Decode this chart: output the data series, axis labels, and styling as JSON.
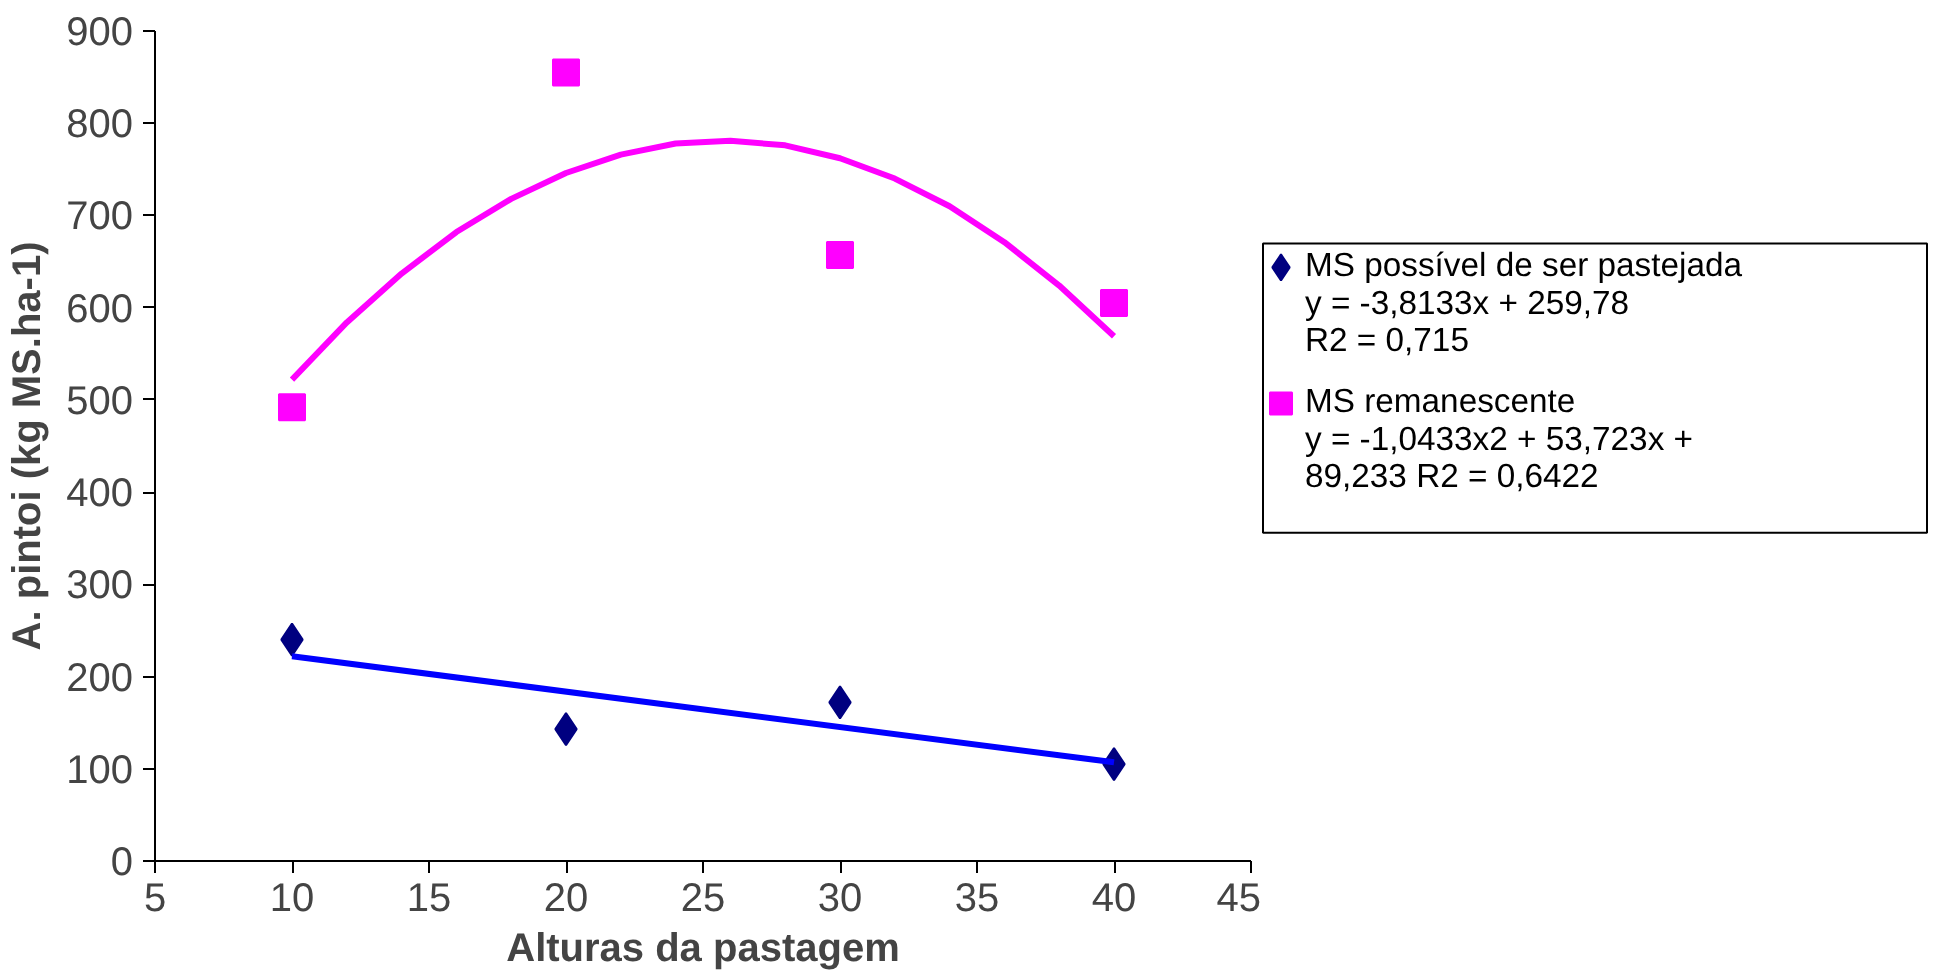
{
  "chart_data": {
    "type": "scatter",
    "xlabel": "Alturas da pastagem",
    "ylabel": "A. pintoi (kg MS.ha-1)",
    "xlim": [
      5,
      45
    ],
    "xticks": [
      5,
      10,
      15,
      20,
      25,
      30,
      35,
      40,
      45
    ],
    "ylim": [
      0,
      900
    ],
    "yticks": [
      0,
      100,
      200,
      300,
      400,
      500,
      600,
      700,
      800,
      900
    ],
    "grid": false,
    "legend": "right",
    "annotations": [
      "y = -3,8133x + 259,78\nR2 = 0,715",
      "y = -1,0433x2 + 53,723x +\n89,233 R2 = 0,6422"
    ],
    "series": [
      {
        "name": "MS possível de ser pastejada",
        "marker": "diamond",
        "color": "#000080",
        "x": [
          10,
          20,
          30,
          40
        ],
        "values": [
          240,
          143,
          172,
          105
        ]
      },
      {
        "name": "MS remanescente",
        "marker": "square",
        "color": "#ff00ff",
        "x": [
          10,
          20,
          30,
          40
        ],
        "values": [
          492,
          855,
          657,
          605
        ]
      },
      {
        "type": "line",
        "marker": "none",
        "color": "#0000ff",
        "x": [
          10,
          40
        ],
        "values": [
          222,
          107
        ]
      },
      {
        "type": "line",
        "marker": "none",
        "color": "#ff00ff",
        "x": [
          10,
          12,
          14,
          16,
          18,
          20,
          22,
          24,
          26,
          28,
          30,
          32,
          34,
          36,
          38,
          40
        ],
        "values": [
          522,
          584,
          637,
          682,
          718,
          746,
          766,
          778,
          781,
          776,
          762,
          740,
          710,
          671,
          624,
          569
        ]
      }
    ]
  }
}
